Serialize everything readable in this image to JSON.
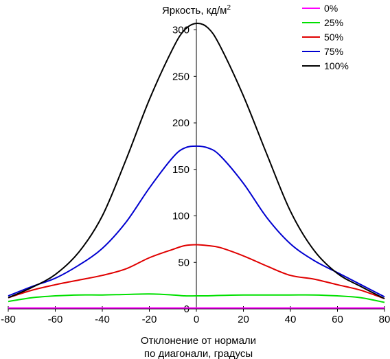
{
  "chart_data": {
    "type": "line",
    "title": "Яркость, кд/м",
    "title_superscript": "2",
    "xlabel_line1": "Отклонение от нормали",
    "xlabel_line2": "по диагонали, градусы",
    "ylabel": "",
    "xlim": [
      -80,
      80
    ],
    "ylim": [
      0,
      310
    ],
    "x_ticks": [
      "-80",
      "-60",
      "-40",
      "-20",
      "0",
      "20",
      "40",
      "60",
      "80"
    ],
    "y_ticks": [
      "0",
      "50",
      "100",
      "150",
      "200",
      "250",
      "300"
    ],
    "grid": false,
    "legend_position": "top-right",
    "x": [
      -80,
      -70,
      -60,
      -50,
      -40,
      -30,
      -20,
      -10,
      -5,
      0,
      5,
      10,
      20,
      30,
      40,
      50,
      60,
      70,
      80
    ],
    "series": [
      {
        "name": "0%",
        "color": "#ff00ff",
        "values": [
          1,
          1,
          1,
          1,
          1,
          1,
          1,
          1,
          1,
          1,
          1,
          1,
          1,
          1,
          1,
          1,
          1,
          1,
          1
        ]
      },
      {
        "name": "25%",
        "color": "#00e000",
        "values": [
          8,
          12,
          14,
          15,
          15,
          15.5,
          16,
          15,
          14,
          14,
          14,
          14.5,
          15,
          15,
          15,
          15,
          14,
          12,
          7
        ]
      },
      {
        "name": "50%",
        "color": "#e00000",
        "values": [
          12,
          20,
          26,
          31,
          36,
          43,
          55,
          64,
          68,
          69,
          68,
          66,
          57,
          46,
          36,
          32,
          26,
          20,
          11
        ]
      },
      {
        "name": "75%",
        "color": "#0000d0",
        "values": [
          14,
          24,
          33,
          47,
          65,
          93,
          130,
          163,
          173,
          175,
          173,
          165,
          135,
          98,
          70,
          52,
          39,
          26,
          13
        ]
      },
      {
        "name": "100%",
        "color": "#000000",
        "values": [
          12,
          23,
          37,
          61,
          100,
          160,
          225,
          280,
          300,
          307,
          302,
          283,
          229,
          166,
          105,
          63,
          38,
          24,
          11
        ]
      }
    ]
  }
}
